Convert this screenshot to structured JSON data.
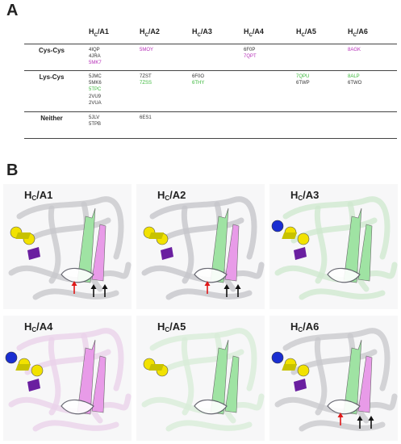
{
  "panel_a": {
    "letter": "A",
    "columns": [
      {
        "base": "H",
        "sub": "C",
        "suffix": "/A1"
      },
      {
        "base": "H",
        "sub": "C",
        "suffix": "/A2"
      },
      {
        "base": "H",
        "sub": "C",
        "suffix": "/A3"
      },
      {
        "base": "H",
        "sub": "C",
        "suffix": "/A4"
      },
      {
        "base": "H",
        "sub": "C",
        "suffix": "/A5"
      },
      {
        "base": "H",
        "sub": "C",
        "suffix": "/A6"
      }
    ],
    "rows": [
      {
        "label": "Cys-Cys",
        "cells": [
          [
            {
              "id": "4IQP",
              "color": "#333333"
            },
            {
              "id": "4JRA",
              "color": "#333333"
            },
            {
              "id": "5MK7",
              "color": "#b62fb8"
            }
          ],
          [
            {
              "id": "5MOY",
              "color": "#b62fb8"
            }
          ],
          [],
          [
            {
              "id": "6F0P",
              "color": "#333333"
            },
            {
              "id": "7QPT",
              "color": "#b62fb8"
            }
          ],
          [],
          [
            {
              "id": "8AGK",
              "color": "#b62fb8"
            }
          ]
        ]
      },
      {
        "label": "Lys-Cys",
        "cells": [
          [
            {
              "id": "5JMC",
              "color": "#333333"
            },
            {
              "id": "5MK6",
              "color": "#333333"
            },
            {
              "id": "5TPC",
              "color": "#3bb83b"
            },
            {
              "id": "2VU9",
              "color": "#333333"
            },
            {
              "id": "2VUA",
              "color": "#333333"
            }
          ],
          [
            {
              "id": "7ZST",
              "color": "#333333"
            },
            {
              "id": "7ZSS",
              "color": "#3bb83b"
            }
          ],
          [
            {
              "id": "6F0O",
              "color": "#333333"
            },
            {
              "id": "6THY",
              "color": "#3bb83b"
            }
          ],
          [],
          [
            {
              "id": "7QPU",
              "color": "#3bb83b"
            },
            {
              "id": "6TWP",
              "color": "#333333"
            }
          ],
          [
            {
              "id": "8ALP",
              "color": "#3bb83b"
            },
            {
              "id": "6TWO",
              "color": "#333333"
            }
          ]
        ]
      },
      {
        "label": "Neither",
        "cells": [
          [
            {
              "id": "5JLV",
              "color": "#333333"
            },
            {
              "id": "5TPB",
              "color": "#333333"
            }
          ],
          [
            {
              "id": "6ES1",
              "color": "#333333"
            }
          ],
          [],
          [],
          [],
          []
        ]
      }
    ]
  },
  "panel_b": {
    "letter": "B",
    "panels": [
      {
        "base": "H",
        "sub": "C",
        "suffix": "/A1",
        "tint": "#c8c8cc",
        "accent": [
          "#e89be8",
          "#9fe3a3"
        ],
        "glycan": "yellow-purple",
        "arrows": [
          "red",
          "black",
          "black"
        ]
      },
      {
        "base": "H",
        "sub": "C",
        "suffix": "/A2",
        "tint": "#c6c6ca",
        "accent": [
          "#e89be8",
          "#9fe3a3"
        ],
        "glycan": "yellow-purple",
        "arrows": [
          "red",
          "black",
          "black"
        ]
      },
      {
        "base": "H",
        "sub": "C",
        "suffix": "/A3",
        "tint": "#cfe9cf",
        "accent": [
          "#9fe3a3",
          "#9fe3a3"
        ],
        "glycan": "blue-yellow-purple",
        "arrows": []
      },
      {
        "base": "H",
        "sub": "C",
        "suffix": "/A4",
        "tint": "#ead2ea",
        "accent": [
          "#e89be8",
          "#e89be8"
        ],
        "glycan": "blue-yellow-purple",
        "arrows": []
      },
      {
        "base": "H",
        "sub": "C",
        "suffix": "/A5",
        "tint": "#d8ecd8",
        "accent": [
          "#9fe3a3",
          "#9fe3a3"
        ],
        "glycan": "yellow",
        "arrows": []
      },
      {
        "base": "H",
        "sub": "C",
        "suffix": "/A6",
        "tint": "#c9c9cd",
        "accent": [
          "#e89be8",
          "#9fe3a3"
        ],
        "glycan": "blue-yellow-purple",
        "arrows": [
          "red",
          "black",
          "black"
        ]
      }
    ]
  }
}
